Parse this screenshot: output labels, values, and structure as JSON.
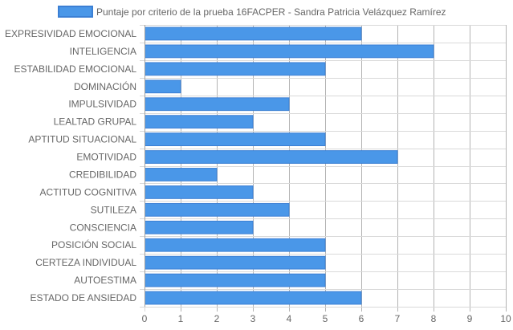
{
  "chart_data": {
    "type": "bar",
    "orientation": "horizontal",
    "categories": [
      "EXPRESIVIDAD EMOCIONAL",
      "INTELIGENCIA",
      "ESTABILIDAD EMOCIONAL",
      "DOMINACIÓN",
      "IMPULSIVIDAD",
      "LEALTAD GRUPAL",
      "APTITUD SITUACIONAL",
      "EMOTIVIDAD",
      "CREDIBILIDAD",
      "ACTITUD COGNITIVA",
      "SUTILEZA",
      "CONSCIENCIA",
      "POSICIÓN SOCIAL",
      "CERTEZA INDIVIDUAL",
      "AUTOESTIMA",
      "ESTADO DE ANSIEDAD"
    ],
    "series": [
      {
        "name": "Puntaje por criterio de la prueba 16FACPER - Sandra Patricia Velázquez Ramírez",
        "values": [
          6,
          8,
          5,
          1,
          4,
          3,
          5,
          7,
          2,
          3,
          4,
          3,
          5,
          5,
          5,
          6
        ],
        "color": "#4a97e8",
        "border_color": "#3b7fd4"
      }
    ],
    "xlim": [
      0,
      10
    ],
    "x_ticks": [
      "0",
      "1",
      "2",
      "3",
      "4",
      "5",
      "6",
      "7",
      "8",
      "9",
      "10"
    ],
    "grid": true,
    "legend": "top-center"
  }
}
